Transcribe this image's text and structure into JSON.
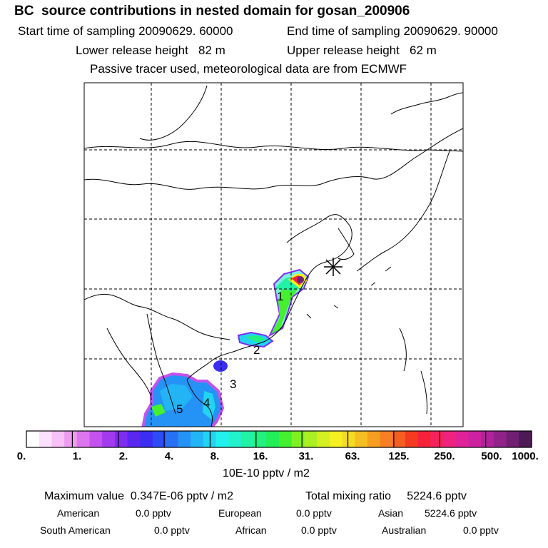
{
  "header": {
    "title": "BC  source contributions in nested domain for gosan_200906",
    "start_time": "Start time of sampling 20090629. 60000",
    "end_time": "End time of sampling 20090629. 90000",
    "lower_height": "Lower release height   82 m",
    "upper_height": "Upper release height   62 m",
    "tracer_note": "Passive tracer used, meteorological data are from ECMWF"
  },
  "map": {
    "region_labels": [
      "1",
      "2",
      "3",
      "4",
      "5"
    ],
    "receptor_marker": "gosan",
    "colors": {
      "land_border": "#000000",
      "grid": "#000000"
    }
  },
  "colorbar": {
    "ticks": [
      "0.",
      "1.",
      "2.",
      "4.",
      "8.",
      "16.",
      "31.",
      "63.",
      "125.",
      "250.",
      "500.",
      "1000."
    ],
    "colors": [
      "#ffffff",
      "#fde0fd",
      "#f7c0f7",
      "#ee9cf0",
      "#dd75ee",
      "#c452ee",
      "#a23af0",
      "#7f2cf2",
      "#5a26f0",
      "#3b2ef2",
      "#2e4cf5",
      "#2870f5",
      "#2493f5",
      "#22b4f5",
      "#22d4f2",
      "#22f0ee",
      "#22f2cc",
      "#22f2a6",
      "#22f07f",
      "#22ee58",
      "#44f030",
      "#7ff022",
      "#aaf022",
      "#d4f022",
      "#f5f022",
      "#f5dc22",
      "#f5bf22",
      "#f59e22",
      "#f57f22",
      "#f55e22",
      "#f53a22",
      "#f5223a",
      "#f5225e",
      "#f02280",
      "#e02298",
      "#cc22a0",
      "#b0229a",
      "#902288",
      "#701f72",
      "#4d1a55"
    ],
    "units": "10E-10 pptv / m2"
  },
  "stats": {
    "max_value": "Maximum value  0.347E-06 pptv / m2",
    "total": "Total mixing ratio     5224.6 pptv",
    "regions": [
      {
        "name": "American",
        "value": "0.0 pptv"
      },
      {
        "name": "European",
        "value": "0.0 pptv"
      },
      {
        "name": "Asian",
        "value": "5224.6 pptv"
      },
      {
        "name": "South American",
        "value": "0.0 pptv"
      },
      {
        "name": "African",
        "value": "0.0 pptv"
      },
      {
        "name": "Australian",
        "value": "0.0 pptv"
      }
    ]
  }
}
